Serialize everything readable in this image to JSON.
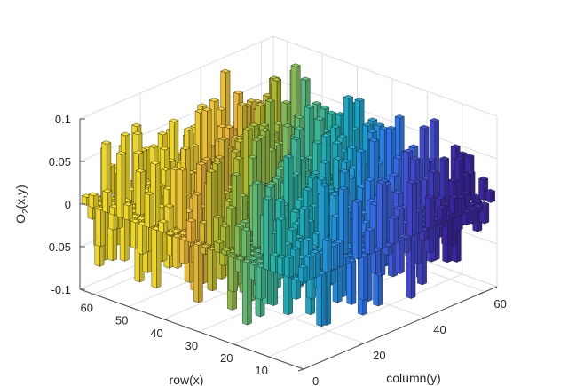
{
  "chart_data": {
    "type": "bar3",
    "title": "",
    "xlabel": "row(x)",
    "ylabel": "column(y)",
    "zlabel_main": "O",
    "zlabel_sub": "2",
    "zlabel_tail": "(x,y)",
    "xlim": [
      0,
      64
    ],
    "ylim": [
      0,
      64
    ],
    "zlim": [
      -0.1,
      0.1
    ],
    "x_ticks": [
      10,
      20,
      30,
      40,
      50,
      60
    ],
    "x_tick_labels": [
      "10",
      "20",
      "30",
      "40",
      "50",
      "60"
    ],
    "y_ticks": [
      0,
      20,
      40,
      60
    ],
    "y_tick_labels": [
      "0",
      "20",
      "40",
      "60"
    ],
    "z_ticks": [
      -0.1,
      -0.05,
      0,
      0.05,
      0.1
    ],
    "z_tick_labels": [
      "-0.1",
      "-0.05",
      "0",
      "0.05",
      "0.1"
    ],
    "grid": true,
    "colormap": [
      "#3e26a8",
      "#4554e0",
      "#2f7ff8",
      "#1ba6da",
      "#21bab6",
      "#5fc380",
      "#b5c22c",
      "#f8bd3c",
      "#f9e12a"
    ],
    "grid_size": [
      64,
      64
    ],
    "bar_stride": 2,
    "value_range": [
      -0.1,
      0.1
    ],
    "value_description": "random-sign noise field, mean approximately 0"
  }
}
